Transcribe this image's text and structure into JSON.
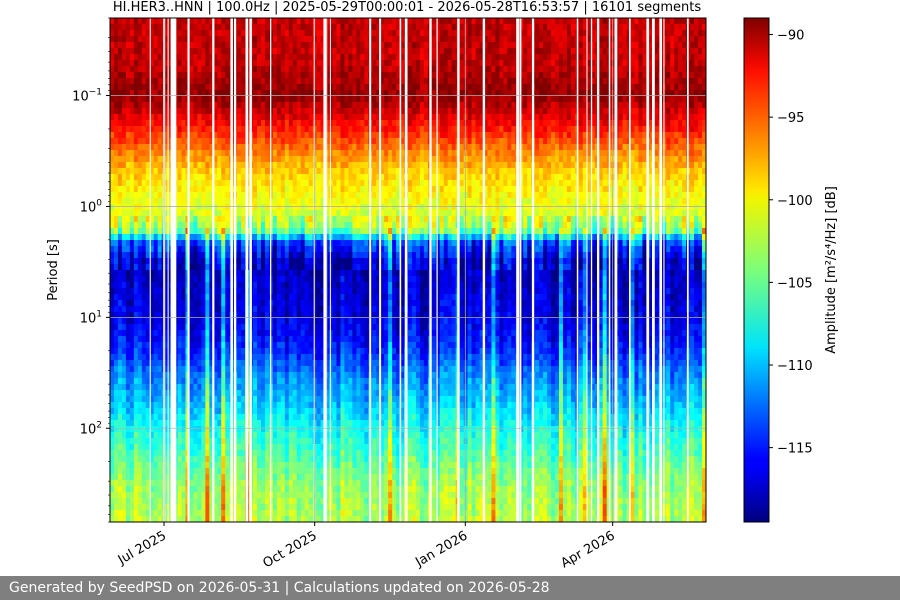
{
  "chart_data": {
    "type": "heatmap",
    "title": "HI.HER3..HNN | 100.0Hz | 2025-05-29T00:00:01 - 2026-05-28T16:53:57 | 16101 segments",
    "xlabel": "",
    "ylabel": "Period [s]",
    "x_range": [
      "2025-05-29",
      "2026-05-28"
    ],
    "x_ticks": [
      {
        "date": "2025-07-01",
        "label": "Jul 2025"
      },
      {
        "date": "2025-10-01",
        "label": "Oct 2025"
      },
      {
        "date": "2026-01-01",
        "label": "Jan 2026"
      },
      {
        "date": "2026-04-01",
        "label": "Apr 2026"
      }
    ],
    "y_scale": "log",
    "y_inverted": true,
    "y_range": [
      0.02,
      700
    ],
    "y_ticks": [
      {
        "value": 0.1,
        "base": "10",
        "exp": "−1"
      },
      {
        "value": 1,
        "base": "10",
        "exp": "0"
      },
      {
        "value": 10,
        "base": "10",
        "exp": "1"
      },
      {
        "value": 100,
        "base": "10",
        "exp": "2"
      }
    ],
    "grid": true,
    "colormap": "jet",
    "colorbar": {
      "label": "Amplitude [m²/s⁴/Hz] [dB]",
      "range": [
        -119.5,
        -89
      ],
      "ticks": [
        {
          "value": -90,
          "label": "−90"
        },
        {
          "value": -95,
          "label": "−95"
        },
        {
          "value": -100,
          "label": "−100"
        },
        {
          "value": -105,
          "label": "−105"
        },
        {
          "value": -110,
          "label": "−110"
        },
        {
          "value": -115,
          "label": "−115"
        }
      ]
    },
    "profile": {
      "log_period": [
        -1.3,
        -1.1,
        -1.0,
        -0.7,
        -0.5,
        -0.3,
        -0.1,
        0.0,
        0.15,
        0.25,
        0.3,
        0.5,
        1.0,
        1.3,
        1.5,
        1.8,
        2.0,
        2.2,
        2.5,
        2.85
      ],
      "db": [
        -91,
        -90,
        -89.5,
        -93.5,
        -96.5,
        -99,
        -100.5,
        -101,
        -102.5,
        -106,
        -113,
        -117.5,
        -116.5,
        -114.5,
        -112,
        -109.5,
        -107.5,
        -106,
        -103.5,
        -102.5
      ]
    }
  },
  "footer": {
    "text": "Generated by SeedPSD on 2026-05-31 | Calculations updated on 2026-05-28"
  }
}
